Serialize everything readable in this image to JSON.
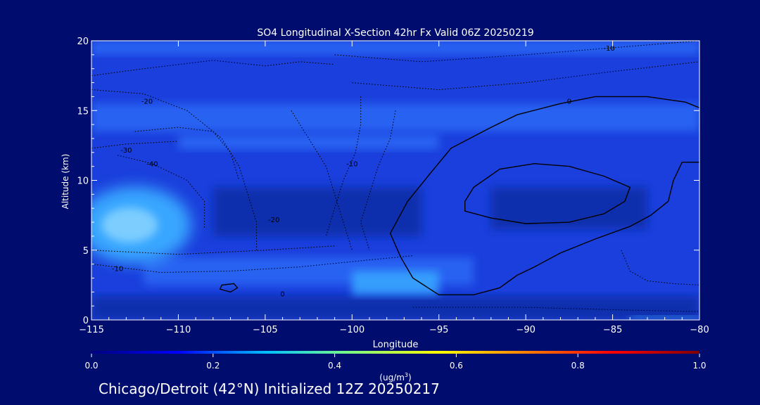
{
  "chart_data": {
    "type": "heatmap",
    "title": "SO4 Longitudinal X-Section 42hr  Fx Valid 06Z 20250219",
    "xlabel": "Longitude",
    "ylabel": "Altitude (km)",
    "xlim": [
      -115,
      -80
    ],
    "ylim": [
      0,
      20
    ],
    "x_ticks": [
      -115,
      -110,
      -105,
      -100,
      -95,
      -90,
      -85,
      -80
    ],
    "x_tick_labels": [
      "−115",
      "−110",
      "−105",
      "−100",
      "−95",
      "−90",
      "−85",
      "−80"
    ],
    "y_ticks": [
      0,
      5,
      10,
      15,
      20
    ],
    "y_tick_labels": [
      "0",
      "5",
      "10",
      "15",
      "20"
    ],
    "colorbar": {
      "range": [
        0.0,
        1.0
      ],
      "tick_values": [
        0.0,
        0.2,
        0.4,
        0.6,
        0.8,
        1.0
      ],
      "tick_labels": [
        "0.0",
        "0.2",
        "0.4",
        "0.6",
        "0.8",
        "1.0"
      ],
      "unit_label": "(ug/m",
      "unit_superscript": "3",
      "unit_close": ")",
      "colormap": [
        "#00007f",
        "#0000ff",
        "#00bfff",
        "#7fff7f",
        "#ffff00",
        "#ff7f00",
        "#ff0000",
        "#7f0000"
      ]
    },
    "colors": {
      "background": "#000c6e",
      "plot_background": "#1a3fdc",
      "band_light": "#2a66f4",
      "band_dark": "#0d2fa8",
      "plume": "#39a6ff",
      "plume_core": "#8fd8ff",
      "contour_solid": "#000000",
      "contour_dotted": "#000000"
    },
    "contour_labels": [
      {
        "text": "-10",
        "lon": -85.2,
        "alt": 19.3
      },
      {
        "text": "-20",
        "lon": -111.8,
        "alt": 15.5
      },
      {
        "text": "-30",
        "lon": -113.0,
        "alt": 12.0
      },
      {
        "text": "-40",
        "lon": -111.5,
        "alt": 11.0
      },
      {
        "text": "-10",
        "lon": -100.0,
        "alt": 11.0
      },
      {
        "text": "-20",
        "lon": -104.5,
        "alt": 7.0
      },
      {
        "text": "-10",
        "lon": -113.5,
        "alt": 3.5
      },
      {
        "text": "0",
        "lon": -104.0,
        "alt": 1.7
      },
      {
        "text": "0",
        "lon": -87.5,
        "alt": 15.5
      }
    ],
    "contours_solid": [
      [
        [
          -97.8,
          6.2
        ],
        [
          -96.8,
          8.5
        ],
        [
          -95.5,
          10.5
        ],
        [
          -94.3,
          12.3
        ],
        [
          -92.0,
          13.8
        ],
        [
          -90.5,
          14.7
        ],
        [
          -88.0,
          15.5
        ],
        [
          -86.0,
          16.0
        ],
        [
          -83.0,
          16.0
        ],
        [
          -80.8,
          15.6
        ],
        [
          -80.0,
          15.2
        ]
      ],
      [
        [
          -97.8,
          6.2
        ],
        [
          -97.2,
          4.5
        ],
        [
          -96.5,
          3.0
        ],
        [
          -95.0,
          1.8
        ],
        [
          -93.0,
          1.8
        ],
        [
          -91.5,
          2.3
        ],
        [
          -90.5,
          3.2
        ],
        [
          -89.5,
          3.8
        ],
        [
          -88.0,
          4.8
        ],
        [
          -86.0,
          5.8
        ],
        [
          -84.0,
          6.7
        ],
        [
          -82.8,
          7.5
        ],
        [
          -81.8,
          8.5
        ],
        [
          -81.5,
          10.0
        ],
        [
          -81.0,
          11.3
        ],
        [
          -80.0,
          11.3
        ]
      ],
      [
        [
          -93.5,
          8.5
        ],
        [
          -93.0,
          9.5
        ],
        [
          -91.5,
          10.8
        ],
        [
          -89.5,
          11.2
        ],
        [
          -87.5,
          11.0
        ],
        [
          -85.5,
          10.3
        ],
        [
          -84.0,
          9.5
        ],
        [
          -84.3,
          8.5
        ],
        [
          -85.5,
          7.6
        ],
        [
          -87.5,
          7.0
        ],
        [
          -90.0,
          6.9
        ],
        [
          -92.0,
          7.3
        ],
        [
          -93.5,
          7.8
        ],
        [
          -93.5,
          8.5
        ]
      ],
      [
        [
          -107.5,
          2.5
        ],
        [
          -106.8,
          2.6
        ],
        [
          -106.6,
          2.3
        ],
        [
          -107.0,
          2.0
        ],
        [
          -107.6,
          2.2
        ],
        [
          -107.5,
          2.5
        ]
      ]
    ],
    "contours_dotted": [
      [
        [
          -115,
          17.5
        ],
        [
          -112.0,
          18.0
        ],
        [
          -108.0,
          18.6
        ],
        [
          -105.0,
          18.2
        ],
        [
          -103.0,
          18.5
        ],
        [
          -101.0,
          18.3
        ]
      ],
      [
        [
          -115,
          16.5
        ],
        [
          -112.0,
          16.2
        ],
        [
          -109.5,
          15.0
        ],
        [
          -107.5,
          13.0
        ],
        [
          -106.5,
          11.0
        ],
        [
          -106.0,
          9.0
        ],
        [
          -105.5,
          7.0
        ],
        [
          -105.5,
          5.0
        ]
      ],
      [
        [
          -112.5,
          13.5
        ],
        [
          -110.0,
          13.8
        ],
        [
          -108.0,
          13.5
        ],
        [
          -107.0,
          12.0
        ],
        [
          -106.5,
          10.0
        ]
      ],
      [
        [
          -113.5,
          11.8
        ],
        [
          -111.5,
          11.2
        ],
        [
          -109.5,
          10.0
        ],
        [
          -108.5,
          8.5
        ],
        [
          -108.5,
          6.5
        ]
      ],
      [
        [
          -103.5,
          15.0
        ],
        [
          -102.5,
          13.0
        ],
        [
          -101.5,
          11.0
        ],
        [
          -101.0,
          9.0
        ],
        [
          -100.5,
          7.0
        ],
        [
          -100.0,
          5.0
        ]
      ],
      [
        [
          -99.5,
          16.0
        ],
        [
          -99.5,
          14.0
        ],
        [
          -99.8,
          12.0
        ],
        [
          -100.5,
          10.0
        ],
        [
          -101.0,
          8.0
        ],
        [
          -101.5,
          6.0
        ]
      ],
      [
        [
          -97.5,
          15.0
        ],
        [
          -97.8,
          13.0
        ],
        [
          -98.5,
          11.0
        ],
        [
          -99.0,
          9.0
        ],
        [
          -99.5,
          7.0
        ],
        [
          -99.0,
          5.0
        ]
      ],
      [
        [
          -115,
          4.0
        ],
        [
          -111.0,
          3.4
        ],
        [
          -107.0,
          3.5
        ],
        [
          -103.0,
          3.8
        ],
        [
          -99.0,
          4.3
        ],
        [
          -96.5,
          4.6
        ]
      ],
      [
        [
          -115,
          5.0
        ],
        [
          -110.0,
          4.7
        ],
        [
          -105.0,
          5.0
        ],
        [
          -101.0,
          5.3
        ]
      ],
      [
        [
          -115,
          12.3
        ],
        [
          -113.0,
          12.6
        ],
        [
          -110.0,
          12.8
        ]
      ],
      [
        [
          -101.0,
          19.0
        ],
        [
          -96.0,
          18.5
        ],
        [
          -90.0,
          19.0
        ],
        [
          -84.0,
          19.6
        ],
        [
          -80.0,
          20.0
        ]
      ],
      [
        [
          -100.0,
          17.0
        ],
        [
          -95.0,
          16.5
        ],
        [
          -90.0,
          17.0
        ],
        [
          -85.0,
          17.8
        ],
        [
          -80.0,
          18.5
        ]
      ],
      [
        [
          -96.5,
          0.9
        ],
        [
          -90.0,
          0.9
        ],
        [
          -84.0,
          0.7
        ],
        [
          -80.0,
          0.6
        ]
      ],
      [
        [
          -84.5,
          5.0
        ],
        [
          -84.0,
          3.5
        ],
        [
          -83.0,
          2.8
        ],
        [
          -81.5,
          2.6
        ],
        [
          -80.0,
          2.5
        ]
      ]
    ]
  }
}
